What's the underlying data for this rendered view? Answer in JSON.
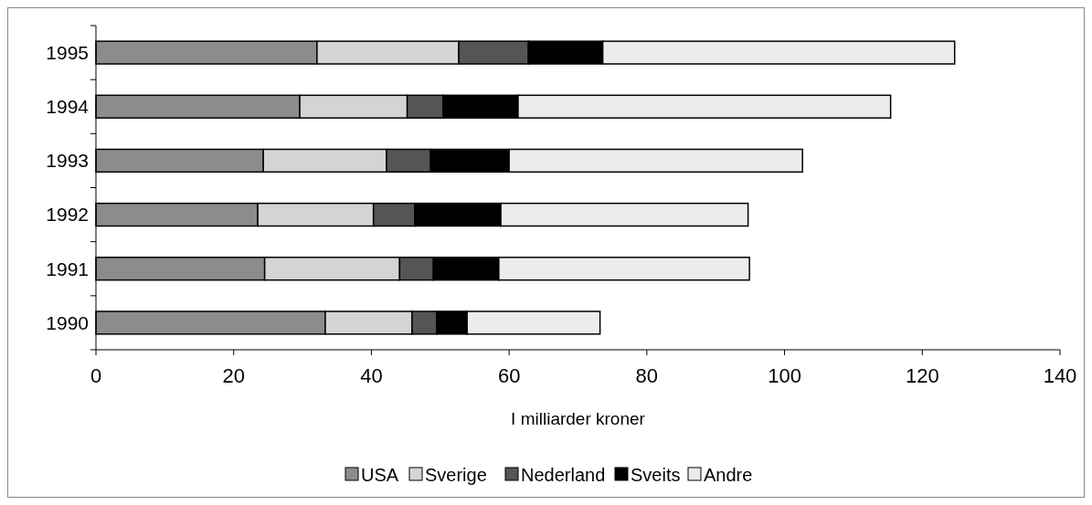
{
  "chart_data": {
    "type": "bar",
    "orientation": "horizontal",
    "stacked": true,
    "xlabel": "I milliarder kroner",
    "categories": [
      "1995",
      "1994",
      "1993",
      "1992",
      "1991",
      "1990"
    ],
    "series": [
      {
        "name": "USA",
        "color": "#8c8c8c",
        "values": [
          32.1,
          29.6,
          24.3,
          23.5,
          24.5,
          33.3
        ]
      },
      {
        "name": "Sverige",
        "color": "#d4d4d4",
        "values": [
          20.6,
          15.6,
          17.9,
          16.8,
          19.6,
          12.6
        ]
      },
      {
        "name": "Nederland",
        "color": "#555555",
        "values": [
          10.1,
          5.2,
          6.4,
          6.0,
          4.9,
          3.6
        ]
      },
      {
        "name": "Sveits",
        "color": "#000000",
        "values": [
          10.8,
          10.9,
          11.4,
          12.5,
          9.5,
          4.4
        ]
      },
      {
        "name": "Andre",
        "color": "#ececec",
        "values": [
          51.1,
          54.1,
          42.6,
          35.9,
          36.4,
          19.3
        ]
      }
    ],
    "xlim": [
      0,
      140
    ],
    "xticks": [
      0,
      20,
      40,
      60,
      80,
      100,
      120,
      140
    ],
    "grid": false,
    "legend": "bottom"
  }
}
